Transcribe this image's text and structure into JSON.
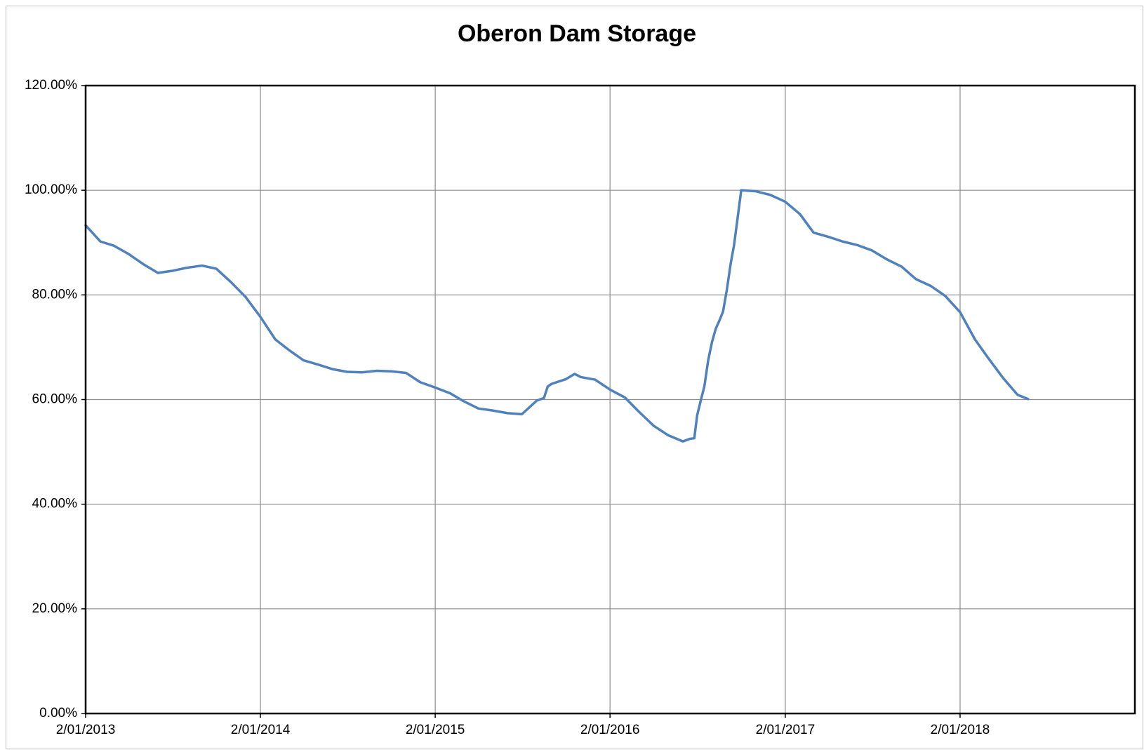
{
  "chart_data": {
    "type": "line",
    "title": "Oberon Dam Storage",
    "xlim": [
      "2013-01-02",
      "2019-01-02"
    ],
    "xticks": [
      {
        "value": "2013-01-02",
        "label": "2/01/2013"
      },
      {
        "value": "2014-01-02",
        "label": "2/01/2014"
      },
      {
        "value": "2015-01-02",
        "label": "2/01/2015"
      },
      {
        "value": "2016-01-02",
        "label": "2/01/2016"
      },
      {
        "value": "2017-01-02",
        "label": "2/01/2017"
      },
      {
        "value": "2018-01-02",
        "label": "2/01/2018"
      }
    ],
    "ylim": [
      0,
      120
    ],
    "yticks": [
      {
        "value": 0,
        "label": "0.00%"
      },
      {
        "value": 20,
        "label": "20.00%"
      },
      {
        "value": 40,
        "label": "40.00%"
      },
      {
        "value": 60,
        "label": "60.00%"
      },
      {
        "value": 80,
        "label": "80.00%"
      },
      {
        "value": 100,
        "label": "100.00%"
      },
      {
        "value": 120,
        "label": "120.00%"
      }
    ],
    "grid": true,
    "x": [
      "2013-01-02",
      "2013-02-02",
      "2013-03-02",
      "2013-04-02",
      "2013-05-02",
      "2013-06-02",
      "2013-07-02",
      "2013-08-02",
      "2013-09-02",
      "2013-10-02",
      "2013-11-02",
      "2013-12-02",
      "2014-01-02",
      "2014-02-02",
      "2014-03-02",
      "2014-04-02",
      "2014-05-02",
      "2014-06-02",
      "2014-07-02",
      "2014-08-02",
      "2014-09-02",
      "2014-10-02",
      "2014-11-02",
      "2014-12-02",
      "2015-01-02",
      "2015-02-02",
      "2015-03-02",
      "2015-04-02",
      "2015-05-02",
      "2015-06-02",
      "2015-07-02",
      "2015-08-02",
      "2015-08-17",
      "2015-08-25",
      "2015-09-02",
      "2015-10-02",
      "2015-10-20",
      "2015-11-02",
      "2015-12-02",
      "2016-01-02",
      "2016-02-02",
      "2016-03-02",
      "2016-04-02",
      "2016-05-02",
      "2016-06-02",
      "2016-06-17",
      "2016-06-26",
      "2016-07-02",
      "2016-07-10",
      "2016-07-17",
      "2016-07-25",
      "2016-08-02",
      "2016-08-10",
      "2016-08-17",
      "2016-08-25",
      "2016-09-02",
      "2016-09-10",
      "2016-09-17",
      "2016-10-02",
      "2016-11-02",
      "2016-12-02",
      "2017-01-02",
      "2017-02-02",
      "2017-03-02",
      "2017-04-02",
      "2017-05-02",
      "2017-06-02",
      "2017-07-02",
      "2017-08-02",
      "2017-09-02",
      "2017-10-02",
      "2017-11-02",
      "2017-12-02",
      "2018-01-02",
      "2018-02-02",
      "2018-03-02",
      "2018-04-02",
      "2018-05-02",
      "2018-05-24"
    ],
    "series": [
      {
        "name": "Oberon Dam Storage",
        "color": "#4f81bd",
        "values": [
          93.3,
          90.2,
          89.4,
          87.8,
          85.9,
          84.2,
          84.6,
          85.2,
          85.6,
          85.0,
          82.4,
          79.6,
          75.8,
          71.5,
          69.5,
          67.5,
          66.7,
          65.8,
          65.3,
          65.2,
          65.5,
          65.4,
          65.1,
          63.3,
          62.3,
          61.2,
          59.7,
          58.3,
          57.9,
          57.4,
          57.2,
          59.8,
          60.3,
          62.5,
          63.0,
          63.9,
          64.9,
          64.3,
          63.8,
          61.9,
          60.4,
          57.7,
          55.0,
          53.2,
          52.0,
          52.5,
          52.6,
          57.0,
          60.0,
          62.5,
          67.5,
          71.0,
          73.6,
          75.0,
          76.8,
          81.0,
          86.0,
          89.5,
          100.0,
          99.8,
          99.1,
          97.8,
          95.4,
          91.9,
          91.1,
          90.2,
          89.5,
          88.5,
          86.8,
          85.4,
          83.0,
          81.7,
          79.8,
          76.7,
          71.5,
          67.9,
          64.1,
          60.9,
          60.1
        ]
      }
    ]
  }
}
